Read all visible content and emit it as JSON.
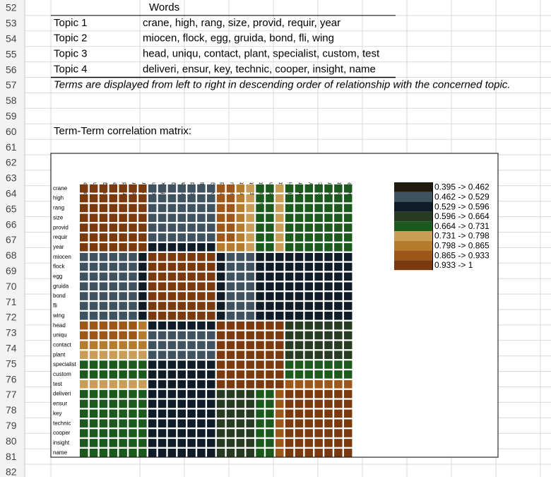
{
  "row_numbers": [
    52,
    53,
    54,
    55,
    56,
    57,
    58,
    59,
    60,
    61,
    62,
    63,
    64,
    65,
    66,
    67,
    68,
    69,
    70,
    71,
    72,
    73,
    74,
    75,
    76,
    77,
    78,
    79,
    80,
    81,
    82
  ],
  "table": {
    "header": "Words",
    "topics": [
      {
        "label": "Topic 1",
        "words": "crane, high, rang, size, provid, requir, year"
      },
      {
        "label": "Topic 2",
        "words": "miocen, flock, egg, gruida, bond, fli, wing"
      },
      {
        "label": "Topic 3",
        "words": "head, uniqu, contact, plant, specialist, custom, test"
      },
      {
        "label": "Topic 4",
        "words": "deliveri, ensur, key, technic, cooper, insight, name"
      }
    ],
    "note": "Terms are displayed from left to right in descending order of relationship with the concerned topic."
  },
  "matrix_title": "Term-Term correlation matrix:",
  "chart_data": {
    "type": "heatmap",
    "terms": [
      "crane",
      "high",
      "rang",
      "size",
      "provid",
      "requir",
      "year",
      "miocen",
      "flock",
      "egg",
      "gruida",
      "bond",
      "fli",
      "wing",
      "head",
      "uniqu",
      "contact",
      "plant",
      "specialist",
      "custom",
      "test",
      "deliveri",
      "ensur",
      "key",
      "technic",
      "cooper",
      "insight",
      "name"
    ],
    "values": [
      [
        1,
        0.97,
        0.97,
        0.97,
        0.97,
        0.97,
        0.97,
        0.5,
        0.5,
        0.5,
        0.5,
        0.5,
        0.5,
        0.5,
        0.88,
        0.88,
        0.83,
        0.77,
        0.7,
        0.7,
        0.77,
        0.7,
        0.7,
        0.7,
        0.7,
        0.7,
        0.7,
        0.7
      ],
      [
        0.97,
        1,
        0.97,
        0.97,
        0.97,
        0.97,
        0.97,
        0.5,
        0.5,
        0.5,
        0.5,
        0.5,
        0.5,
        0.5,
        0.88,
        0.88,
        0.83,
        0.77,
        0.7,
        0.7,
        0.77,
        0.7,
        0.7,
        0.7,
        0.7,
        0.7,
        0.7,
        0.7
      ],
      [
        0.97,
        0.97,
        1,
        0.97,
        0.97,
        0.97,
        0.97,
        0.5,
        0.5,
        0.5,
        0.5,
        0.5,
        0.5,
        0.5,
        0.88,
        0.88,
        0.83,
        0.77,
        0.7,
        0.7,
        0.77,
        0.7,
        0.7,
        0.7,
        0.7,
        0.7,
        0.7,
        0.7
      ],
      [
        0.97,
        0.97,
        0.97,
        1,
        0.97,
        0.97,
        0.97,
        0.5,
        0.5,
        0.5,
        0.5,
        0.5,
        0.5,
        0.5,
        0.88,
        0.88,
        0.83,
        0.77,
        0.7,
        0.7,
        0.77,
        0.7,
        0.7,
        0.7,
        0.7,
        0.7,
        0.7,
        0.7
      ],
      [
        0.97,
        0.97,
        0.97,
        0.97,
        1,
        0.97,
        0.97,
        0.5,
        0.5,
        0.5,
        0.5,
        0.5,
        0.5,
        0.5,
        0.88,
        0.88,
        0.83,
        0.77,
        0.7,
        0.7,
        0.77,
        0.7,
        0.7,
        0.7,
        0.7,
        0.7,
        0.7,
        0.7
      ],
      [
        0.97,
        0.97,
        0.97,
        0.97,
        0.97,
        1,
        0.97,
        0.5,
        0.5,
        0.5,
        0.5,
        0.5,
        0.5,
        0.5,
        0.88,
        0.88,
        0.83,
        0.77,
        0.7,
        0.7,
        0.77,
        0.7,
        0.7,
        0.7,
        0.7,
        0.7,
        0.7,
        0.7
      ],
      [
        0.97,
        0.97,
        0.97,
        0.97,
        0.97,
        0.97,
        1,
        0.56,
        0.56,
        0.56,
        0.56,
        0.56,
        0.56,
        0.56,
        0.83,
        0.83,
        0.83,
        0.77,
        0.7,
        0.7,
        0.77,
        0.7,
        0.7,
        0.7,
        0.7,
        0.7,
        0.7,
        0.7
      ],
      [
        0.5,
        0.5,
        0.5,
        0.5,
        0.5,
        0.5,
        0.56,
        1,
        0.97,
        0.97,
        0.97,
        0.97,
        0.97,
        0.97,
        0.56,
        0.5,
        0.5,
        0.5,
        0.56,
        0.56,
        0.56,
        0.56,
        0.56,
        0.56,
        0.56,
        0.56,
        0.56,
        0.56
      ],
      [
        0.5,
        0.5,
        0.5,
        0.5,
        0.5,
        0.5,
        0.56,
        0.97,
        1,
        0.97,
        0.97,
        0.97,
        0.97,
        0.97,
        0.56,
        0.5,
        0.5,
        0.5,
        0.56,
        0.56,
        0.56,
        0.56,
        0.56,
        0.56,
        0.56,
        0.56,
        0.56,
        0.56
      ],
      [
        0.5,
        0.5,
        0.5,
        0.5,
        0.5,
        0.5,
        0.56,
        0.97,
        0.97,
        1,
        0.97,
        0.97,
        0.97,
        0.97,
        0.56,
        0.5,
        0.5,
        0.5,
        0.56,
        0.56,
        0.56,
        0.56,
        0.56,
        0.56,
        0.56,
        0.56,
        0.56,
        0.56
      ],
      [
        0.5,
        0.5,
        0.5,
        0.5,
        0.5,
        0.5,
        0.56,
        0.97,
        0.97,
        0.97,
        1,
        0.97,
        0.97,
        0.97,
        0.56,
        0.5,
        0.5,
        0.5,
        0.56,
        0.56,
        0.56,
        0.56,
        0.56,
        0.56,
        0.56,
        0.56,
        0.56,
        0.56
      ],
      [
        0.5,
        0.5,
        0.5,
        0.5,
        0.5,
        0.5,
        0.56,
        0.97,
        0.97,
        0.97,
        0.97,
        1,
        0.97,
        0.97,
        0.56,
        0.5,
        0.5,
        0.5,
        0.56,
        0.56,
        0.56,
        0.56,
        0.56,
        0.56,
        0.56,
        0.56,
        0.56,
        0.56
      ],
      [
        0.5,
        0.5,
        0.5,
        0.5,
        0.5,
        0.5,
        0.56,
        0.97,
        0.97,
        0.97,
        0.97,
        0.97,
        1,
        0.97,
        0.56,
        0.5,
        0.5,
        0.5,
        0.56,
        0.56,
        0.56,
        0.56,
        0.56,
        0.56,
        0.56,
        0.56,
        0.56,
        0.56
      ],
      [
        0.5,
        0.5,
        0.5,
        0.5,
        0.5,
        0.5,
        0.56,
        0.97,
        0.97,
        0.97,
        0.97,
        0.97,
        0.97,
        1,
        0.56,
        0.5,
        0.5,
        0.5,
        0.56,
        0.56,
        0.56,
        0.56,
        0.56,
        0.56,
        0.56,
        0.56,
        0.56,
        0.56
      ],
      [
        0.88,
        0.88,
        0.88,
        0.88,
        0.88,
        0.88,
        0.83,
        0.56,
        0.56,
        0.56,
        0.56,
        0.56,
        0.56,
        0.56,
        1,
        0.97,
        0.97,
        0.97,
        0.97,
        0.97,
        0.97,
        0.63,
        0.63,
        0.63,
        0.63,
        0.63,
        0.63,
        0.63
      ],
      [
        0.88,
        0.88,
        0.88,
        0.88,
        0.88,
        0.88,
        0.83,
        0.5,
        0.5,
        0.5,
        0.5,
        0.5,
        0.5,
        0.5,
        0.97,
        1,
        0.97,
        0.97,
        0.97,
        0.97,
        0.97,
        0.63,
        0.63,
        0.63,
        0.63,
        0.63,
        0.63,
        0.63
      ],
      [
        0.83,
        0.83,
        0.83,
        0.83,
        0.83,
        0.83,
        0.83,
        0.5,
        0.5,
        0.5,
        0.5,
        0.5,
        0.5,
        0.5,
        0.97,
        0.97,
        1,
        0.97,
        0.97,
        0.97,
        0.97,
        0.63,
        0.63,
        0.63,
        0.63,
        0.63,
        0.63,
        0.63
      ],
      [
        0.77,
        0.77,
        0.77,
        0.77,
        0.77,
        0.77,
        0.77,
        0.5,
        0.5,
        0.5,
        0.5,
        0.5,
        0.5,
        0.5,
        0.97,
        0.97,
        0.97,
        1,
        0.97,
        0.97,
        0.97,
        0.63,
        0.63,
        0.63,
        0.63,
        0.63,
        0.63,
        0.63
      ],
      [
        0.7,
        0.7,
        0.7,
        0.7,
        0.7,
        0.7,
        0.7,
        0.56,
        0.56,
        0.56,
        0.56,
        0.56,
        0.56,
        0.56,
        0.97,
        0.97,
        0.97,
        0.97,
        1,
        0.97,
        0.97,
        0.7,
        0.7,
        0.7,
        0.7,
        0.7,
        0.7,
        0.7
      ],
      [
        0.7,
        0.7,
        0.7,
        0.7,
        0.7,
        0.7,
        0.7,
        0.56,
        0.56,
        0.56,
        0.56,
        0.56,
        0.56,
        0.56,
        0.97,
        0.97,
        0.97,
        0.97,
        0.97,
        1,
        0.97,
        0.7,
        0.7,
        0.7,
        0.7,
        0.7,
        0.7,
        0.7
      ],
      [
        0.77,
        0.77,
        0.77,
        0.77,
        0.77,
        0.77,
        0.77,
        0.56,
        0.56,
        0.56,
        0.56,
        0.56,
        0.56,
        0.56,
        0.97,
        0.97,
        0.97,
        0.97,
        0.97,
        0.97,
        1,
        0.9,
        0.9,
        0.9,
        0.9,
        0.9,
        0.9,
        0.9
      ],
      [
        0.7,
        0.7,
        0.7,
        0.7,
        0.7,
        0.7,
        0.7,
        0.56,
        0.56,
        0.56,
        0.56,
        0.56,
        0.56,
        0.56,
        0.63,
        0.63,
        0.63,
        0.63,
        0.7,
        0.7,
        0.9,
        1,
        0.97,
        0.97,
        0.97,
        0.97,
        0.97,
        0.97
      ],
      [
        0.7,
        0.7,
        0.7,
        0.7,
        0.7,
        0.7,
        0.7,
        0.56,
        0.56,
        0.56,
        0.56,
        0.56,
        0.56,
        0.56,
        0.63,
        0.63,
        0.63,
        0.63,
        0.7,
        0.7,
        0.9,
        0.97,
        1,
        0.97,
        0.97,
        0.97,
        0.97,
        0.97
      ],
      [
        0.7,
        0.7,
        0.7,
        0.7,
        0.7,
        0.7,
        0.7,
        0.56,
        0.56,
        0.56,
        0.56,
        0.56,
        0.56,
        0.56,
        0.63,
        0.63,
        0.63,
        0.63,
        0.7,
        0.7,
        0.9,
        0.97,
        0.97,
        1,
        0.97,
        0.97,
        0.97,
        0.97
      ],
      [
        0.7,
        0.7,
        0.7,
        0.7,
        0.7,
        0.7,
        0.7,
        0.56,
        0.56,
        0.56,
        0.56,
        0.56,
        0.56,
        0.56,
        0.63,
        0.63,
        0.63,
        0.63,
        0.7,
        0.7,
        0.9,
        0.97,
        0.97,
        0.97,
        1,
        0.97,
        0.97,
        0.97
      ],
      [
        0.7,
        0.7,
        0.7,
        0.7,
        0.7,
        0.7,
        0.7,
        0.56,
        0.56,
        0.56,
        0.56,
        0.56,
        0.56,
        0.56,
        0.63,
        0.63,
        0.63,
        0.63,
        0.7,
        0.7,
        0.9,
        0.97,
        0.97,
        0.97,
        0.97,
        1,
        0.97,
        0.97
      ],
      [
        0.7,
        0.7,
        0.7,
        0.7,
        0.7,
        0.7,
        0.7,
        0.56,
        0.56,
        0.56,
        0.56,
        0.56,
        0.56,
        0.56,
        0.63,
        0.63,
        0.63,
        0.63,
        0.7,
        0.7,
        0.9,
        0.97,
        0.97,
        0.97,
        0.97,
        0.97,
        1,
        0.97
      ],
      [
        0.7,
        0.7,
        0.7,
        0.7,
        0.7,
        0.7,
        0.7,
        0.56,
        0.56,
        0.56,
        0.56,
        0.56,
        0.56,
        0.56,
        0.63,
        0.63,
        0.63,
        0.63,
        0.7,
        0.7,
        0.9,
        0.97,
        0.97,
        0.97,
        0.97,
        0.97,
        0.97,
        1
      ]
    ],
    "bins": [
      0.395,
      0.462,
      0.529,
      0.596,
      0.664,
      0.731,
      0.798,
      0.865,
      0.933,
      1
    ],
    "colors": [
      "#201b0f",
      "#3e525f",
      "#0f1c27",
      "#263b21",
      "#1b5a1c",
      "#c99d55",
      "#b67c2e",
      "#9d5718",
      "#7a3a0d"
    ],
    "legend_labels": [
      "0.395 -> 0.462",
      "0.462 -> 0.529",
      "0.529 -> 0.596",
      "0.596 -> 0.664",
      "0.664 -> 0.731",
      "0.731 -> 0.798",
      "0.798 -> 0.865",
      "0.865 -> 0.933",
      "0.933 -> 1"
    ]
  }
}
